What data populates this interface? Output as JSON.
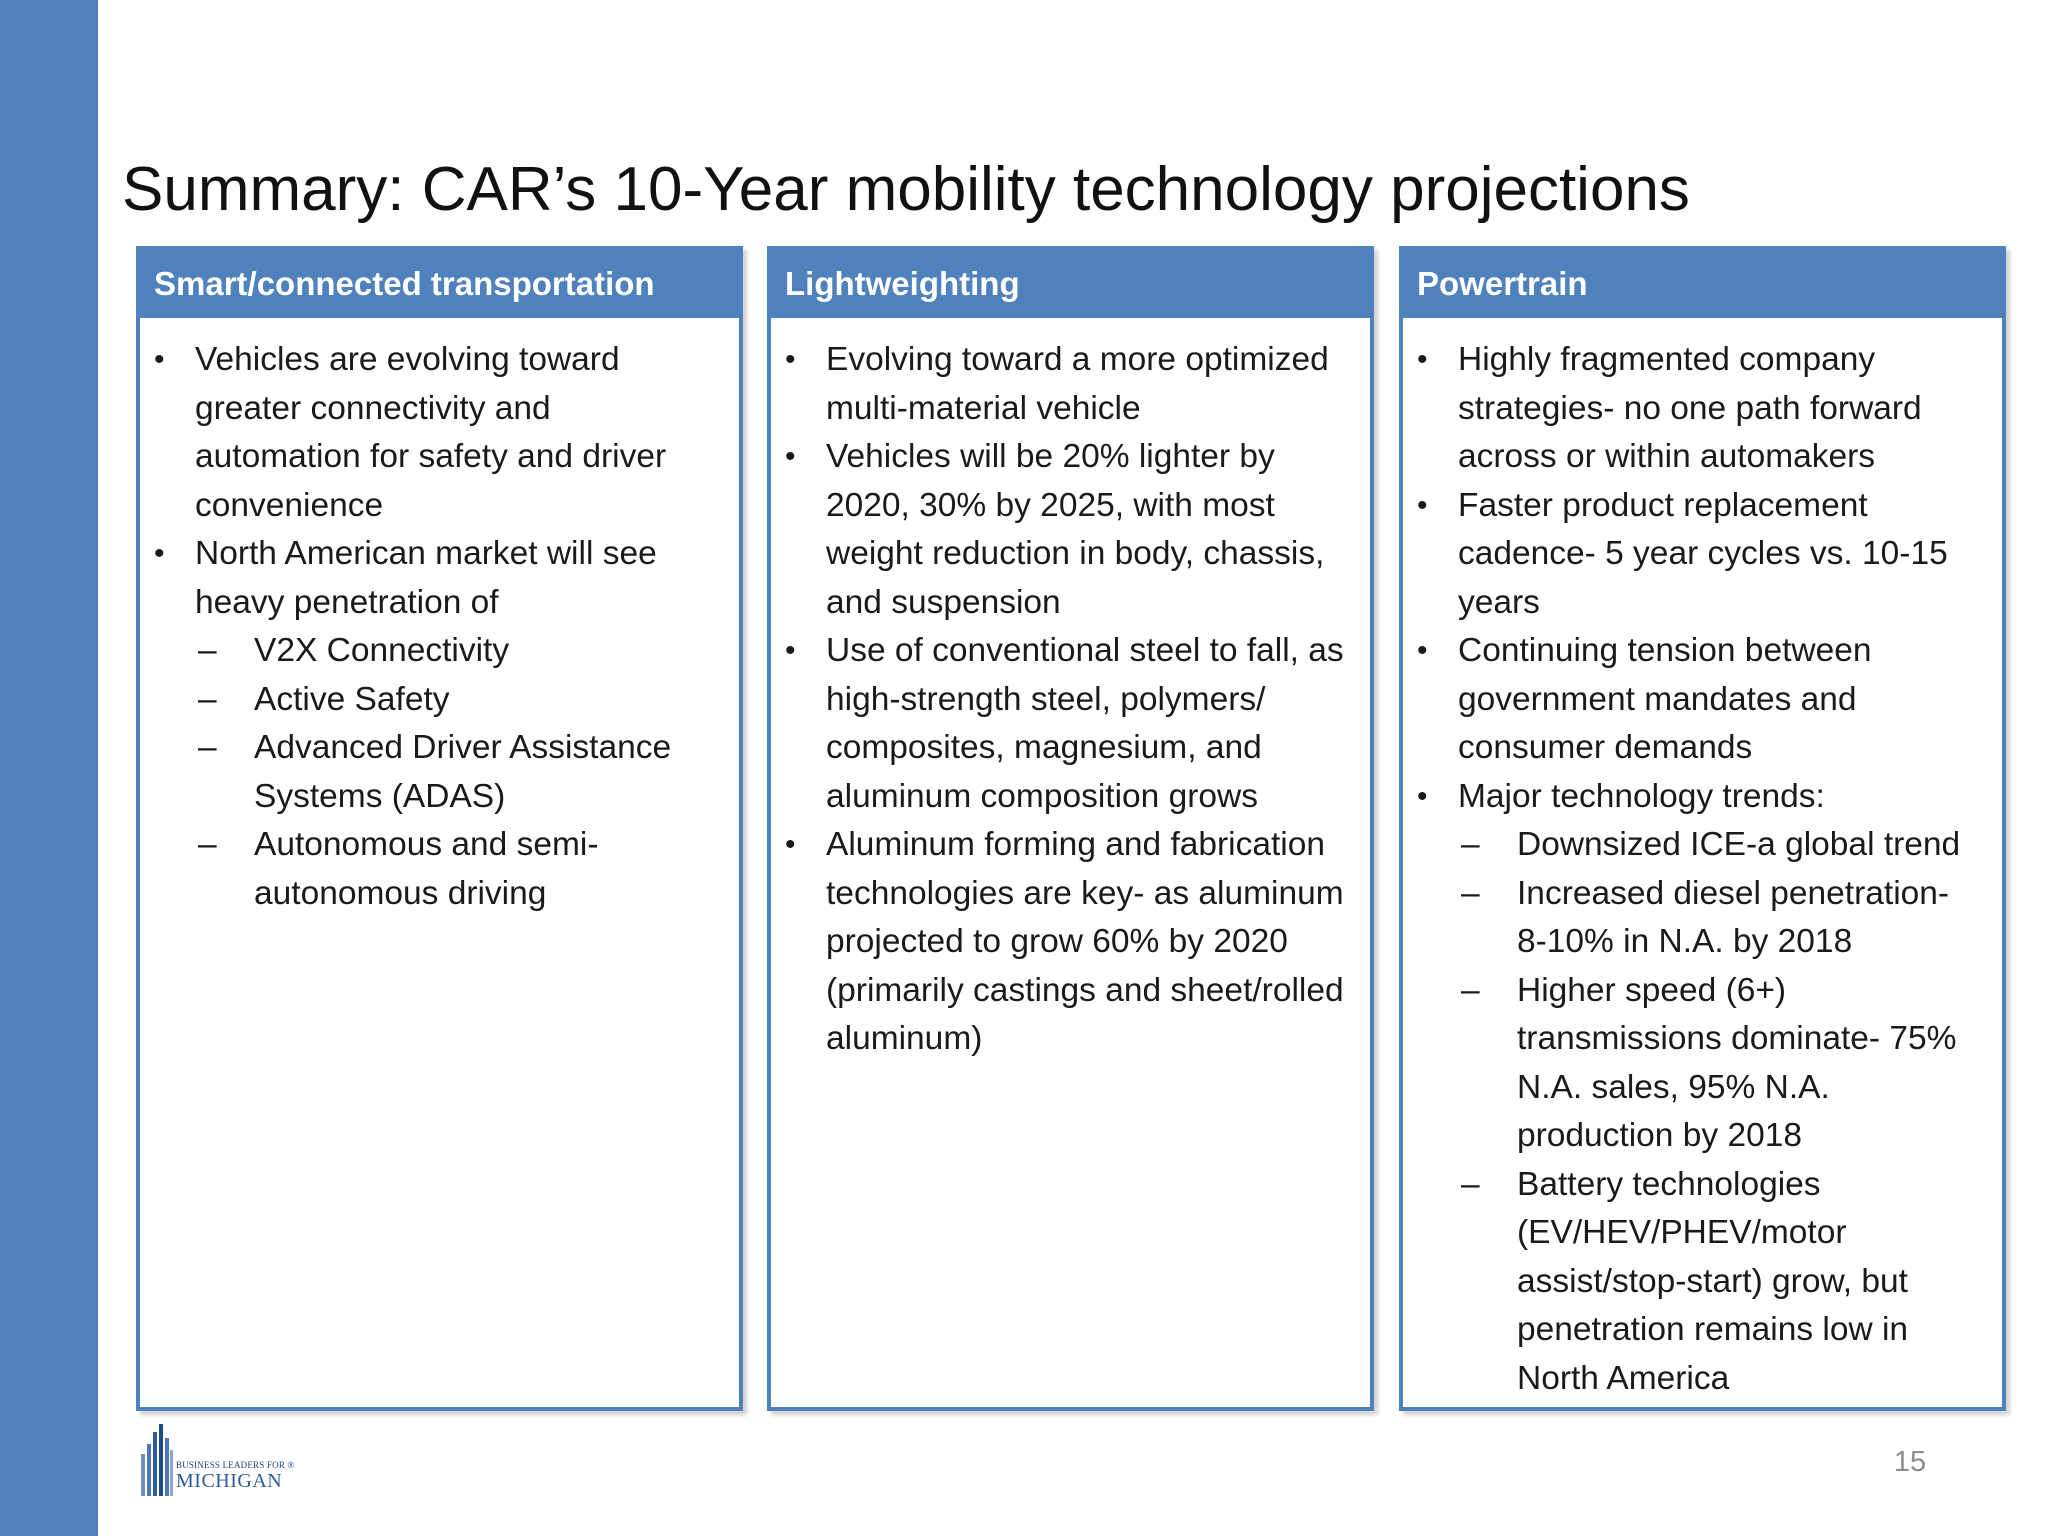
{
  "slide": {
    "title": "Summary: CAR’s 10-Year mobility technology projections",
    "page_number": "15"
  },
  "logo": {
    "small_text": "BUSINESS LEADERS FOR ®",
    "big_text": "MICHIGAN"
  },
  "panels": [
    {
      "header": "Smart/connected transportation",
      "items": [
        {
          "kind": "bullet",
          "marker": "•",
          "text": "Vehicles are evolving toward greater connectivity and automation for safety and driver convenience"
        },
        {
          "kind": "bullet",
          "marker": "•",
          "text": "North American market will see heavy penetration of"
        },
        {
          "kind": "sub",
          "marker": "–",
          "text": "V2X Connectivity"
        },
        {
          "kind": "sub",
          "marker": "–",
          "text": "Active Safety"
        },
        {
          "kind": "sub",
          "marker": "–",
          "text": "Advanced Driver Assistance Systems (ADAS)"
        },
        {
          "kind": "sub",
          "marker": "–",
          "text": "Autonomous and semi-autonomous driving"
        }
      ]
    },
    {
      "header": "Lightweighting",
      "items": [
        {
          "kind": "bullet",
          "marker": "•",
          "text": "Evolving toward a more optimized multi-material vehicle"
        },
        {
          "kind": "bullet",
          "marker": "•",
          "text": "Vehicles will be 20% lighter by 2020, 30% by 2025, with most weight reduction in body, chassis, and suspension"
        },
        {
          "kind": "bullet",
          "marker": "•",
          "text": "Use of conventional steel to fall, as high-strength steel, polymers/ composites, magnesium, and aluminum composition grows"
        },
        {
          "kind": "bullet",
          "marker": "•",
          "text": "Aluminum forming and fabrication technologies are key- as aluminum projected to grow 60% by 2020 (primarily castings and sheet/rolled aluminum)"
        }
      ]
    },
    {
      "header": "Powertrain",
      "items": [
        {
          "kind": "bullet",
          "marker": "•",
          "text": "Highly fragmented company strategies- no one path forward across or within automakers"
        },
        {
          "kind": "bullet",
          "marker": "•",
          "text": "Faster product replacement cadence- 5 year cycles vs. 10-15 years"
        },
        {
          "kind": "bullet",
          "marker": "•",
          "text": "Continuing tension between government mandates and consumer demands"
        },
        {
          "kind": "bullet",
          "marker": "•",
          "text": "Major technology trends:"
        },
        {
          "kind": "sub",
          "marker": "–",
          "text": "Downsized ICE-a global trend"
        },
        {
          "kind": "sub",
          "marker": "–",
          "text": "Increased diesel penetration- 8-10% in N.A. by 2018"
        },
        {
          "kind": "sub",
          "marker": "–",
          "text": "Higher speed (6+) transmissions dominate- 75% N.A. sales, 95% N.A. production by 2018"
        },
        {
          "kind": "sub",
          "marker": "–",
          "text": "Battery technologies (EV/HEV/PHEV/motor assist/stop-start) grow, but penetration remains low in North America"
        }
      ]
    }
  ]
}
